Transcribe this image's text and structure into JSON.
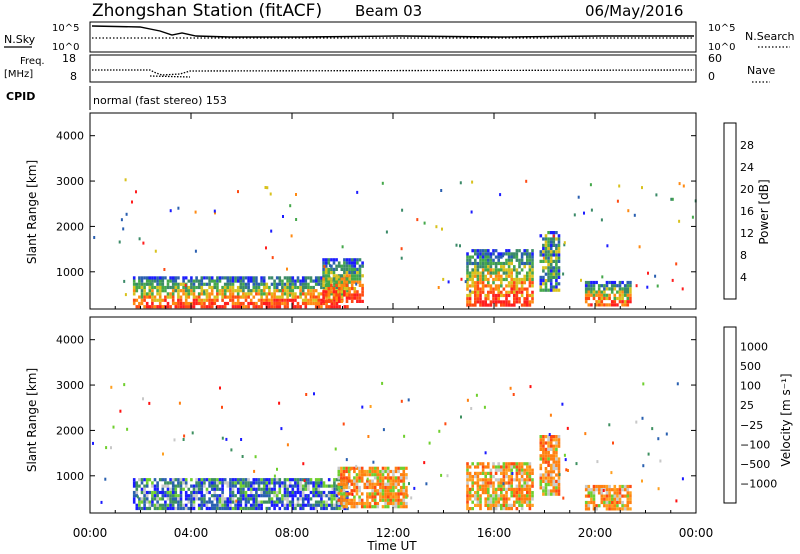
{
  "header": {
    "title": "Zhongshan Station (fitACF)",
    "beam": "Beam 03",
    "date": "06/May/2016"
  },
  "top_panels": {
    "nsky_label": "N.Sky",
    "nsearch_label": "N.Search",
    "nsky_ticks": [
      "10^5",
      "10^0"
    ],
    "nsearch_ticks": [
      "10^5",
      "10^0"
    ],
    "freq_label_line1": "Freq.",
    "freq_label_line2": "[MHz]",
    "freq_ticks": [
      "18",
      "8"
    ],
    "nave_label": "Nave",
    "nave_ticks": [
      "60",
      "0"
    ],
    "cpid_label": "CPID",
    "cpid_text": "normal (fast stereo) 153"
  },
  "chart_data": [
    {
      "type": "heatmap",
      "name": "power",
      "ylabel": "Slant Range [km]",
      "ylim": [
        180,
        4500
      ],
      "yticks": [
        "1000",
        "2000",
        "3000",
        "4000"
      ],
      "xlim": [
        0,
        24
      ],
      "xticks": [
        "00:00",
        "04:00",
        "08:00",
        "12:00",
        "16:00",
        "20:00",
        "00:00"
      ],
      "colorbar": {
        "label": "Power [dB]",
        "ticks": [
          "4",
          "8",
          "12",
          "16",
          "20",
          "24",
          "28"
        ],
        "colors": [
          "#1c1cff",
          "#2a5fb0",
          "#3b8a68",
          "#44a84a",
          "#d8c21e",
          "#ff8a12",
          "#ff4a12",
          "#ff1e1e"
        ]
      },
      "regions": [
        {
          "t": [
            1.7,
            10.2
          ],
          "r": [
            250,
            900
          ],
          "level": "high"
        },
        {
          "t": [
            9.2,
            10.8
          ],
          "r": [
            350,
            1300
          ],
          "level": "high"
        },
        {
          "t": [
            14.9,
            17.5
          ],
          "r": [
            250,
            1500
          ],
          "level": "high"
        },
        {
          "t": [
            17.8,
            18.6
          ],
          "r": [
            600,
            1900
          ],
          "level": "mid"
        },
        {
          "t": [
            19.6,
            21.4
          ],
          "r": [
            250,
            800
          ],
          "level": "high"
        }
      ]
    },
    {
      "type": "heatmap",
      "name": "velocity",
      "ylabel": "Slant Range [km]",
      "ylim": [
        180,
        4500
      ],
      "yticks": [
        "1000",
        "2000",
        "3000",
        "4000"
      ],
      "xlim": [
        0,
        24
      ],
      "xticks": [
        "00:00",
        "04:00",
        "08:00",
        "12:00",
        "16:00",
        "20:00",
        "00:00"
      ],
      "xlabel": "Time UT",
      "colorbar": {
        "label": "Velocity [m s⁻¹]",
        "ticks": [
          "1000",
          "500",
          "100",
          "25",
          "−25",
          "−100",
          "−500",
          "−1000"
        ],
        "colors": [
          "#1a1aff",
          "#2a60b0",
          "#3e9060",
          "#6fcf2e",
          "#c8c8c8",
          "#ffa020",
          "#ff8010",
          "#ff4a10",
          "#ff1010"
        ]
      },
      "regions": [
        {
          "t": [
            1.7,
            10.2
          ],
          "r": [
            250,
            950
          ],
          "level": "mixed"
        },
        {
          "t": [
            9.8,
            12.5
          ],
          "r": [
            300,
            1200
          ],
          "level": "receding"
        },
        {
          "t": [
            14.9,
            17.5
          ],
          "r": [
            250,
            1300
          ],
          "level": "receding"
        },
        {
          "t": [
            17.8,
            18.6
          ],
          "r": [
            600,
            1900
          ],
          "level": "receding"
        },
        {
          "t": [
            19.6,
            21.4
          ],
          "r": [
            250,
            800
          ],
          "level": "receding"
        }
      ]
    }
  ]
}
